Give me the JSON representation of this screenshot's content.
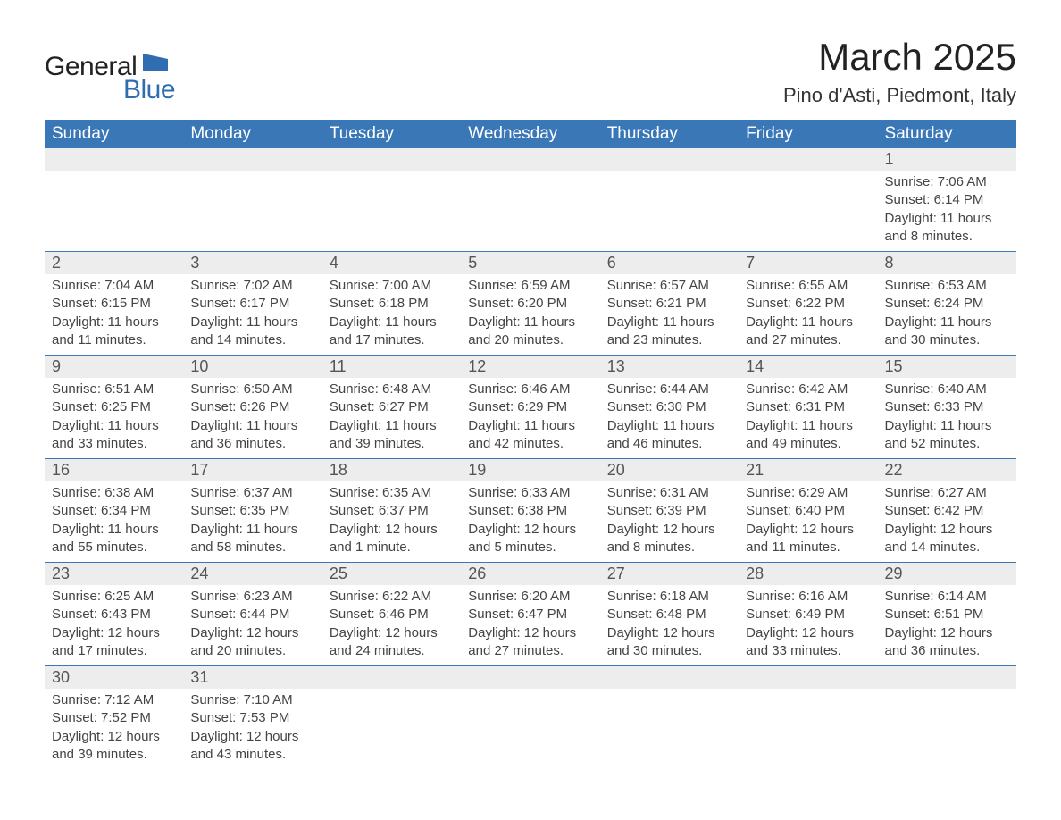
{
  "logo": {
    "text_general": "General",
    "text_blue": "Blue",
    "flag_color": "#2f6db0"
  },
  "title": "March 2025",
  "location": "Pino d'Asti, Piedmont, Italy",
  "colors": {
    "header_bg": "#3a77b7",
    "header_fg": "#ffffff",
    "daynum_bg": "#ededed",
    "row_border": "#3a77b7",
    "body_bg": "#ffffff",
    "text": "#444444"
  },
  "day_headers": [
    "Sunday",
    "Monday",
    "Tuesday",
    "Wednesday",
    "Thursday",
    "Friday",
    "Saturday"
  ],
  "rows": [
    [
      null,
      null,
      null,
      null,
      null,
      null,
      {
        "n": "1",
        "sunrise": "Sunrise: 7:06 AM",
        "sunset": "Sunset: 6:14 PM",
        "daylight": "Daylight: 11 hours and 8 minutes."
      }
    ],
    [
      {
        "n": "2",
        "sunrise": "Sunrise: 7:04 AM",
        "sunset": "Sunset: 6:15 PM",
        "daylight": "Daylight: 11 hours and 11 minutes."
      },
      {
        "n": "3",
        "sunrise": "Sunrise: 7:02 AM",
        "sunset": "Sunset: 6:17 PM",
        "daylight": "Daylight: 11 hours and 14 minutes."
      },
      {
        "n": "4",
        "sunrise": "Sunrise: 7:00 AM",
        "sunset": "Sunset: 6:18 PM",
        "daylight": "Daylight: 11 hours and 17 minutes."
      },
      {
        "n": "5",
        "sunrise": "Sunrise: 6:59 AM",
        "sunset": "Sunset: 6:20 PM",
        "daylight": "Daylight: 11 hours and 20 minutes."
      },
      {
        "n": "6",
        "sunrise": "Sunrise: 6:57 AM",
        "sunset": "Sunset: 6:21 PM",
        "daylight": "Daylight: 11 hours and 23 minutes."
      },
      {
        "n": "7",
        "sunrise": "Sunrise: 6:55 AM",
        "sunset": "Sunset: 6:22 PM",
        "daylight": "Daylight: 11 hours and 27 minutes."
      },
      {
        "n": "8",
        "sunrise": "Sunrise: 6:53 AM",
        "sunset": "Sunset: 6:24 PM",
        "daylight": "Daylight: 11 hours and 30 minutes."
      }
    ],
    [
      {
        "n": "9",
        "sunrise": "Sunrise: 6:51 AM",
        "sunset": "Sunset: 6:25 PM",
        "daylight": "Daylight: 11 hours and 33 minutes."
      },
      {
        "n": "10",
        "sunrise": "Sunrise: 6:50 AM",
        "sunset": "Sunset: 6:26 PM",
        "daylight": "Daylight: 11 hours and 36 minutes."
      },
      {
        "n": "11",
        "sunrise": "Sunrise: 6:48 AM",
        "sunset": "Sunset: 6:27 PM",
        "daylight": "Daylight: 11 hours and 39 minutes."
      },
      {
        "n": "12",
        "sunrise": "Sunrise: 6:46 AM",
        "sunset": "Sunset: 6:29 PM",
        "daylight": "Daylight: 11 hours and 42 minutes."
      },
      {
        "n": "13",
        "sunrise": "Sunrise: 6:44 AM",
        "sunset": "Sunset: 6:30 PM",
        "daylight": "Daylight: 11 hours and 46 minutes."
      },
      {
        "n": "14",
        "sunrise": "Sunrise: 6:42 AM",
        "sunset": "Sunset: 6:31 PM",
        "daylight": "Daylight: 11 hours and 49 minutes."
      },
      {
        "n": "15",
        "sunrise": "Sunrise: 6:40 AM",
        "sunset": "Sunset: 6:33 PM",
        "daylight": "Daylight: 11 hours and 52 minutes."
      }
    ],
    [
      {
        "n": "16",
        "sunrise": "Sunrise: 6:38 AM",
        "sunset": "Sunset: 6:34 PM",
        "daylight": "Daylight: 11 hours and 55 minutes."
      },
      {
        "n": "17",
        "sunrise": "Sunrise: 6:37 AM",
        "sunset": "Sunset: 6:35 PM",
        "daylight": "Daylight: 11 hours and 58 minutes."
      },
      {
        "n": "18",
        "sunrise": "Sunrise: 6:35 AM",
        "sunset": "Sunset: 6:37 PM",
        "daylight": "Daylight: 12 hours and 1 minute."
      },
      {
        "n": "19",
        "sunrise": "Sunrise: 6:33 AM",
        "sunset": "Sunset: 6:38 PM",
        "daylight": "Daylight: 12 hours and 5 minutes."
      },
      {
        "n": "20",
        "sunrise": "Sunrise: 6:31 AM",
        "sunset": "Sunset: 6:39 PM",
        "daylight": "Daylight: 12 hours and 8 minutes."
      },
      {
        "n": "21",
        "sunrise": "Sunrise: 6:29 AM",
        "sunset": "Sunset: 6:40 PM",
        "daylight": "Daylight: 12 hours and 11 minutes."
      },
      {
        "n": "22",
        "sunrise": "Sunrise: 6:27 AM",
        "sunset": "Sunset: 6:42 PM",
        "daylight": "Daylight: 12 hours and 14 minutes."
      }
    ],
    [
      {
        "n": "23",
        "sunrise": "Sunrise: 6:25 AM",
        "sunset": "Sunset: 6:43 PM",
        "daylight": "Daylight: 12 hours and 17 minutes."
      },
      {
        "n": "24",
        "sunrise": "Sunrise: 6:23 AM",
        "sunset": "Sunset: 6:44 PM",
        "daylight": "Daylight: 12 hours and 20 minutes."
      },
      {
        "n": "25",
        "sunrise": "Sunrise: 6:22 AM",
        "sunset": "Sunset: 6:46 PM",
        "daylight": "Daylight: 12 hours and 24 minutes."
      },
      {
        "n": "26",
        "sunrise": "Sunrise: 6:20 AM",
        "sunset": "Sunset: 6:47 PM",
        "daylight": "Daylight: 12 hours and 27 minutes."
      },
      {
        "n": "27",
        "sunrise": "Sunrise: 6:18 AM",
        "sunset": "Sunset: 6:48 PM",
        "daylight": "Daylight: 12 hours and 30 minutes."
      },
      {
        "n": "28",
        "sunrise": "Sunrise: 6:16 AM",
        "sunset": "Sunset: 6:49 PM",
        "daylight": "Daylight: 12 hours and 33 minutes."
      },
      {
        "n": "29",
        "sunrise": "Sunrise: 6:14 AM",
        "sunset": "Sunset: 6:51 PM",
        "daylight": "Daylight: 12 hours and 36 minutes."
      }
    ],
    [
      {
        "n": "30",
        "sunrise": "Sunrise: 7:12 AM",
        "sunset": "Sunset: 7:52 PM",
        "daylight": "Daylight: 12 hours and 39 minutes."
      },
      {
        "n": "31",
        "sunrise": "Sunrise: 7:10 AM",
        "sunset": "Sunset: 7:53 PM",
        "daylight": "Daylight: 12 hours and 43 minutes."
      },
      null,
      null,
      null,
      null,
      null
    ]
  ]
}
